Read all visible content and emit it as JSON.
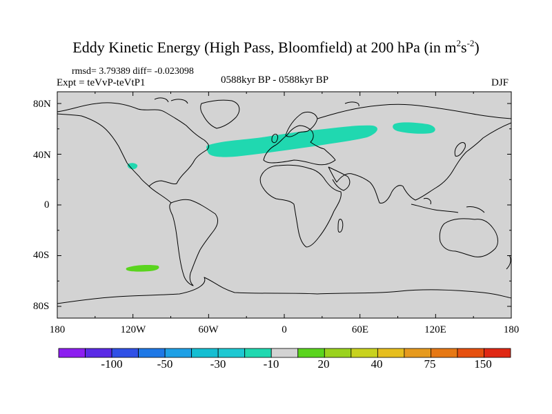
{
  "title": {
    "main": "Eddy Kinetic Energy (High Pass, Bloomfield) at 200 hPa (in m",
    "sup1": "2",
    "mid": "s",
    "sup2": "-2",
    "end": ")"
  },
  "stats": "rmsd= 3.79389 diff= -0.023098",
  "expt": "Expt = teVvP-teVtP1",
  "period": "0588kyr BP - 0588kyr BP",
  "season": "DJF",
  "map": {
    "background": "#d3d3d3",
    "projection": "cylindrical equidistant",
    "lat_ticks": [
      "80N",
      "40N",
      "0",
      "40S",
      "80S"
    ],
    "lon_ticks": [
      "180",
      "120W",
      "60W",
      "0",
      "60E",
      "120E",
      "180"
    ],
    "features": [
      {
        "name": "north-atlantic-eurasia-band",
        "level": "-10",
        "color": "#20d8b0"
      },
      {
        "name": "siberia-patch",
        "level": "-10",
        "color": "#20d8b0"
      },
      {
        "name": "california-patch",
        "level": "-10",
        "color": "#20d8b0"
      },
      {
        "name": "south-pacific-patch",
        "level": "20",
        "color": "#5ad41e"
      }
    ]
  },
  "colorbar": {
    "colors": [
      "#8c1ef0",
      "#5a2ae6",
      "#3050e6",
      "#1e78e6",
      "#1ea0e6",
      "#14bed2",
      "#1ec8d2",
      "#20d8b0",
      "#d3d3d3",
      "#5ad41e",
      "#9ad21e",
      "#c8d21e",
      "#e6be1e",
      "#e69a1e",
      "#e67814",
      "#e6500f",
      "#e02814"
    ],
    "labels": [
      "-100",
      "-50",
      "-30",
      "-10",
      "20",
      "40",
      "75",
      "150"
    ]
  }
}
